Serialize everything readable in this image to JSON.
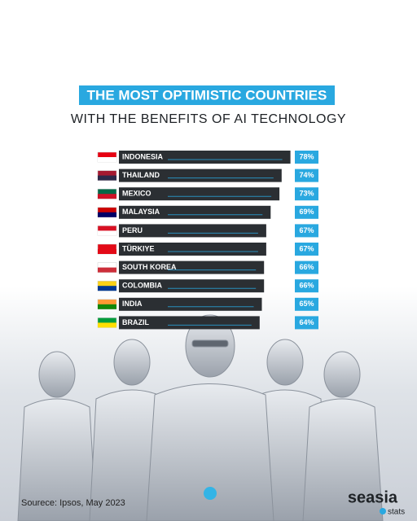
{
  "chart_data": {
    "type": "bar",
    "orientation": "horizontal",
    "title": "THE MOST OPTIMISTIC COUNTRIES",
    "subtitle": "WITH THE BENEFITS OF AI TECHNOLOGY",
    "categories": [
      "INDONESIA",
      "THAILAND",
      "MEXICO",
      "MALAYSIA",
      "PERU",
      "TÜRKIYE",
      "SOUTH KOREA",
      "COLOMBIA",
      "INDIA",
      "BRAZIL"
    ],
    "values": [
      78,
      74,
      73,
      69,
      67,
      67,
      66,
      66,
      65,
      64
    ],
    "value_labels": [
      "78%",
      "74%",
      "73%",
      "69%",
      "67%",
      "67%",
      "66%",
      "66%",
      "65%",
      "64%"
    ],
    "color": "#2b2f33",
    "label_color": "#29a8e0",
    "source": "Sourece: Ipsos, May 2023",
    "logo": "seasia",
    "logo_sub": "stats"
  }
}
